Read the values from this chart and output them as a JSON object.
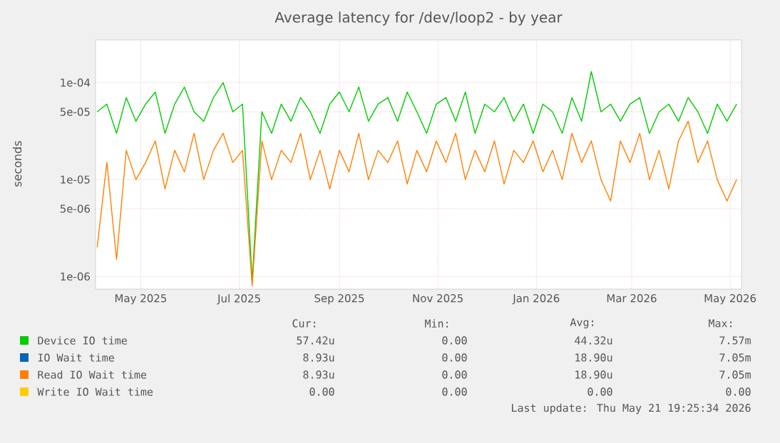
{
  "chart_data": {
    "type": "line",
    "title": "Average latency for /dev/loop2 - by year",
    "ylabel": "seconds",
    "log": "y",
    "grid": true,
    "legend": "bottom",
    "marker": "none",
    "line_style": "solid",
    "xlim": [
      "2025-04-03",
      "2026-05-08"
    ],
    "xticks": [
      {
        "value": "2025-05-01",
        "label": "May 2025"
      },
      {
        "value": "2025-07-01",
        "label": "Jul 2025"
      },
      {
        "value": "2025-09-01",
        "label": "Sep 2025"
      },
      {
        "value": "2025-11-01",
        "label": "Nov 2025"
      },
      {
        "value": "2026-01-01",
        "label": "Jan 2026"
      },
      {
        "value": "2026-03-01",
        "label": "Mar 2026"
      },
      {
        "value": "2026-05-01",
        "label": "May 2026"
      }
    ],
    "ylim": [
      7.4e-07,
      0.000276
    ],
    "yticks": [
      {
        "value": 1e-06,
        "label": "1e-06"
      },
      {
        "value": 5e-06,
        "label": "5e-06"
      },
      {
        "value": 1e-05,
        "label": "1e-05"
      },
      {
        "value": 5e-05,
        "label": "5e-05"
      },
      {
        "value": 0.0001,
        "label": "1e-04"
      }
    ],
    "x": [
      "2025-04-04",
      "2025-04-10",
      "2025-04-16",
      "2025-04-22",
      "2025-04-28",
      "2025-05-04",
      "2025-05-10",
      "2025-05-16",
      "2025-05-22",
      "2025-05-28",
      "2025-06-03",
      "2025-06-09",
      "2025-06-15",
      "2025-06-21",
      "2025-06-27",
      "2025-07-03",
      "2025-07-09",
      "2025-07-15",
      "2025-07-21",
      "2025-07-27",
      "2025-08-02",
      "2025-08-08",
      "2025-08-14",
      "2025-08-20",
      "2025-08-26",
      "2025-09-01",
      "2025-09-07",
      "2025-09-13",
      "2025-09-19",
      "2025-09-25",
      "2025-10-01",
      "2025-10-07",
      "2025-10-13",
      "2025-10-19",
      "2025-10-25",
      "2025-10-31",
      "2025-11-06",
      "2025-11-12",
      "2025-11-18",
      "2025-11-24",
      "2025-11-30",
      "2025-12-06",
      "2025-12-12",
      "2025-12-18",
      "2025-12-24",
      "2025-12-30",
      "2026-01-05",
      "2026-01-11",
      "2026-01-17",
      "2026-01-23",
      "2026-01-29",
      "2026-02-04",
      "2026-02-10",
      "2026-02-16",
      "2026-02-22",
      "2026-02-28",
      "2026-03-06",
      "2026-03-12",
      "2026-03-18",
      "2026-03-24",
      "2026-03-30",
      "2026-04-05",
      "2026-04-11",
      "2026-04-17",
      "2026-04-23",
      "2026-04-29",
      "2026-05-05"
    ],
    "series": [
      {
        "name": "Device IO time",
        "color": "#00cc00",
        "values": [
          5e-05,
          6e-05,
          3e-05,
          7e-05,
          4e-05,
          6e-05,
          8e-05,
          3e-05,
          6e-05,
          9e-05,
          5e-05,
          4e-05,
          7e-05,
          0.0001,
          5e-05,
          6e-05,
          9e-07,
          5e-05,
          3e-05,
          6e-05,
          4e-05,
          7e-05,
          5e-05,
          3e-05,
          6e-05,
          8e-05,
          5e-05,
          9e-05,
          4e-05,
          6e-05,
          7e-05,
          4e-05,
          8e-05,
          5e-05,
          3e-05,
          6e-05,
          7e-05,
          4e-05,
          8e-05,
          3e-05,
          6e-05,
          5e-05,
          7e-05,
          4e-05,
          6e-05,
          3e-05,
          6e-05,
          5e-05,
          3e-05,
          7e-05,
          4e-05,
          0.00013,
          5e-05,
          6e-05,
          4e-05,
          6e-05,
          7e-05,
          3e-05,
          5e-05,
          6e-05,
          4e-05,
          7e-05,
          5e-05,
          3e-05,
          6e-05,
          4e-05,
          6e-05
        ]
      },
      {
        "name": "IO Wait time",
        "color": "#0066b3",
        "values": [
          null,
          null,
          null,
          null,
          null,
          null,
          null,
          null,
          null,
          null,
          null,
          null,
          null,
          null,
          null,
          null,
          null,
          null,
          null,
          null,
          null,
          null,
          null,
          null,
          null,
          null,
          null,
          null,
          null,
          null,
          null,
          null,
          null,
          null,
          null,
          null,
          null,
          null,
          null,
          null,
          null,
          null,
          null,
          null,
          null,
          null,
          null,
          null,
          null,
          null,
          null,
          null,
          null,
          null,
          null,
          null,
          null,
          null,
          null,
          null,
          null,
          null,
          null,
          null,
          null,
          null,
          null
        ]
      },
      {
        "name": "Read IO Wait time",
        "color": "#ff8000",
        "values": [
          2e-06,
          1.5e-05,
          1.5e-06,
          2e-05,
          1e-05,
          1.5e-05,
          2.5e-05,
          8e-06,
          2e-05,
          1.2e-05,
          3e-05,
          1e-05,
          2e-05,
          3e-05,
          1.5e-05,
          2e-05,
          8e-07,
          2.5e-05,
          1e-05,
          2e-05,
          1.5e-05,
          3e-05,
          1e-05,
          2e-05,
          8e-06,
          2e-05,
          1.2e-05,
          3e-05,
          1e-05,
          2e-05,
          1.5e-05,
          2.5e-05,
          9e-06,
          2e-05,
          1.2e-05,
          2.5e-05,
          1.5e-05,
          3e-05,
          1e-05,
          2e-05,
          1.2e-05,
          2.5e-05,
          9e-06,
          2e-05,
          1.5e-05,
          2.5e-05,
          1.2e-05,
          2e-05,
          1e-05,
          3e-05,
          1.5e-05,
          2.5e-05,
          1e-05,
          6e-06,
          2.5e-05,
          1.5e-05,
          3e-05,
          1e-05,
          2e-05,
          8e-06,
          2.5e-05,
          4e-05,
          1.5e-05,
          2.5e-05,
          1e-05,
          6e-06,
          1e-05
        ]
      },
      {
        "name": "Write IO Wait time",
        "color": "#ffcc00",
        "values": [
          null,
          null,
          null,
          null,
          null,
          null,
          null,
          null,
          null,
          null,
          null,
          null,
          null,
          null,
          null,
          null,
          null,
          null,
          null,
          null,
          null,
          null,
          null,
          null,
          null,
          null,
          null,
          null,
          null,
          null,
          null,
          null,
          null,
          null,
          null,
          null,
          null,
          null,
          null,
          null,
          null,
          null,
          null,
          null,
          null,
          null,
          null,
          null,
          null,
          null,
          null,
          null,
          null,
          null,
          null,
          null,
          null,
          null,
          null,
          null,
          null,
          null,
          null,
          null,
          null,
          null,
          null
        ]
      }
    ],
    "annotations": [
      "Cur:",
      "Min:",
      "Avg:",
      "Max:",
      "57.42u",
      "0.00",
      "44.32u",
      "7.57m",
      "8.93u",
      "0.00",
      "18.90u",
      "7.05m",
      "8.93u",
      "0.00",
      "18.90u",
      "7.05m",
      "0.00",
      "0.00",
      "0.00",
      "0.00",
      "Last update: Thu May 21 19:25:34 2026"
    ]
  }
}
